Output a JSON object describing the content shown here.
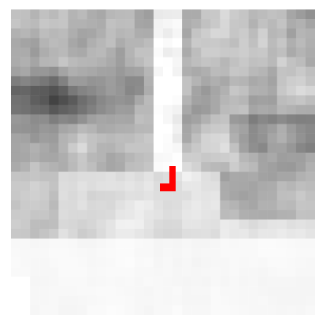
{
  "image": {
    "kind": "grayscale-pixel-grid",
    "background_color": "#ffffff"
  },
  "marker": {
    "shape": "corner-bracket",
    "color": "#ff0000"
  }
}
